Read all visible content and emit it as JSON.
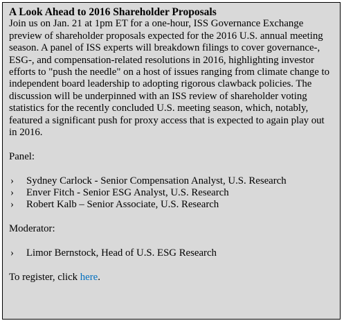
{
  "title": "A Look Ahead to 2016 Shareholder Proposals",
  "intro": "Join us on Jan. 21 at 1pm ET for a one-hour, ISS Governance Exchange preview of shareholder proposals expected for the 2016 U.S. annual meeting season. A panel of ISS experts will breakdown filings to cover governance-, ESG-, and compensation-related resolutions in 2016, highlighting investor efforts to \"push the needle\" on a host of issues ranging from climate change to independent board leadership to adopting rigorous clawback policies. The discussion will be underpinned with an ISS review of shareholder voting statistics for the recently concluded U.S. meeting season, which, notably, featured a significant push for proxy access that is expected to again play out in 2016.",
  "panel": {
    "heading": "Panel:",
    "members": [
      "Sydney Carlock - Senior Compensation Analyst, U.S. Research",
      "Enver Fitch - Senior ESG Analyst, U.S. Research",
      "Robert Kalb – Senior Associate, U.S. Research"
    ]
  },
  "moderator": {
    "heading": "Moderator:",
    "members": [
      "Limor Bernstock, Head of U.S. ESG Research"
    ]
  },
  "bullet_glyph": "›",
  "register": {
    "prefix": "To register, click ",
    "link_text": "here",
    "suffix": "."
  },
  "colors": {
    "background": "#d9d9d9",
    "link": "#0070c0",
    "border": "#000000"
  }
}
